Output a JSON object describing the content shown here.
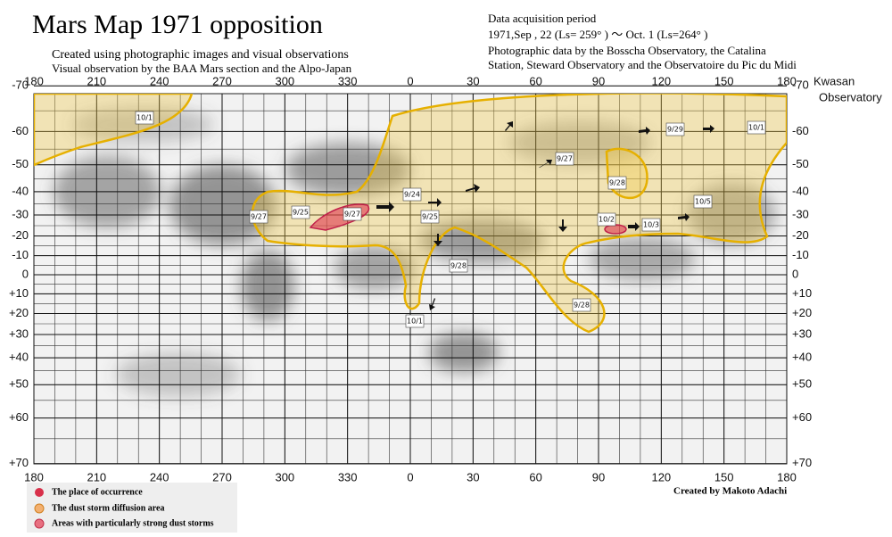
{
  "header": {
    "title": "Mars Map 1971   opposition",
    "subtitles": [
      "Created using photographic images and visual observations",
      "Visual observation by the BAA Mars section and the Alpo-Japan"
    ],
    "info": [
      "Data acquisition period",
      "1971,Sep , 22 (Ls= 259°  ) ～ Oct. 1    (Ls=264°  )",
      "Photographic data by the Bosscha Observatory, the Catalina",
      "Station, Steward Observatory and the Observatoire du Pic du Midi"
    ],
    "observatory": [
      "Kwasan",
      "Observatory"
    ]
  },
  "map": {
    "longitudes": [
      180,
      210,
      240,
      270,
      300,
      330,
      0,
      30,
      60,
      90,
      120,
      150,
      180
    ],
    "latitudes": [
      -70,
      -60,
      -50,
      -40,
      -30,
      -20,
      -10,
      0,
      {
        "value": 10,
        "label": "+10"
      },
      {
        "value": 20,
        "label": "+20"
      },
      {
        "value": 30,
        "label": "+30"
      },
      {
        "value": 40,
        "label": "+40"
      },
      {
        "value": 50,
        "label": "+50"
      },
      {
        "value": 60,
        "label": "+60"
      },
      {
        "value": 70,
        "label": "+70"
      }
    ],
    "annotations": [
      "10/1",
      "9/29",
      "10/1",
      "9/27",
      "9/28",
      "9/24",
      "9/25",
      "9/27",
      "9/25",
      "9/27",
      "10/5",
      "10/2",
      "10/3",
      "9/28",
      "9/28",
      "10/1"
    ]
  },
  "credit": "Created by Makoto Adachi",
  "legend": [
    "The place of occurrence",
    "The dust storm diffusion area",
    "Areas with particularly strong dust storms"
  ]
}
